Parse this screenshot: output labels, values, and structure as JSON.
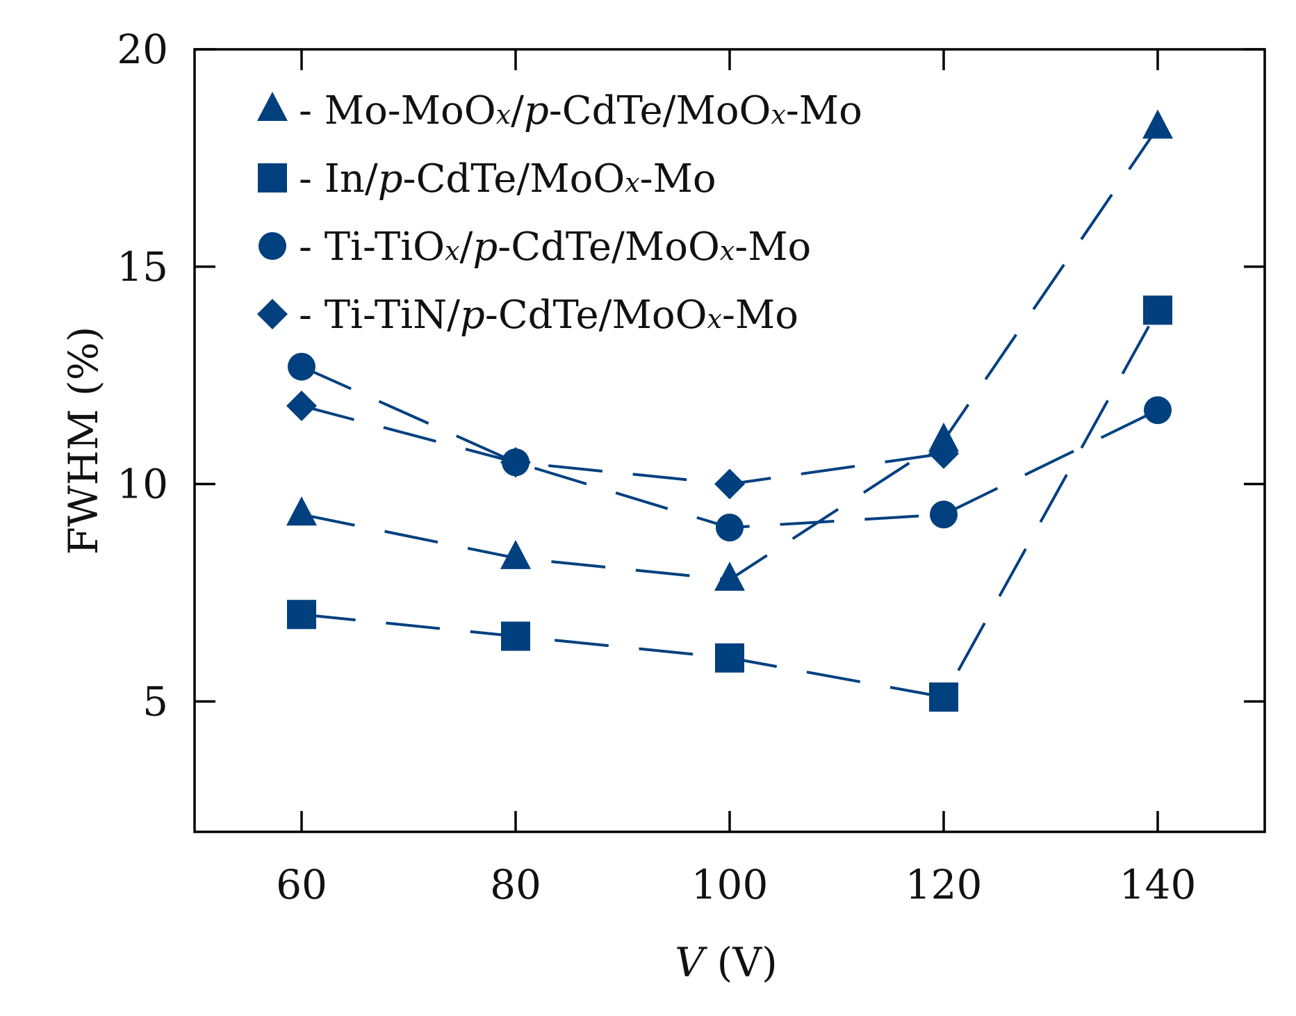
{
  "chart_data": {
    "type": "line",
    "title": "",
    "xlabel_var": "V",
    "xlabel_unit": " (V)",
    "ylabel": "FWHM (%)",
    "xlim": [
      50,
      150
    ],
    "ylim": [
      2,
      20
    ],
    "xticks": [
      60,
      80,
      100,
      120,
      140
    ],
    "yticks": [
      5,
      10,
      15,
      20
    ],
    "xtick_labels": [
      "60",
      "80",
      "100",
      "120",
      "140"
    ],
    "ytick_labels": [
      "5",
      "10",
      "15",
      "20"
    ],
    "grid": false,
    "legend_position": "top-left",
    "line_style": "dashed",
    "color": "#00407f",
    "series": [
      {
        "name": "Mo-MoOx/p-CdTe/MoOx-Mo",
        "legend_parts": [
          {
            "t": "- Mo-MoO",
            "s": "normal"
          },
          {
            "t": "x",
            "s": "sub"
          },
          {
            "t": "/",
            "s": "normal"
          },
          {
            "t": "p",
            "s": "italic"
          },
          {
            "t": "-CdTe/MoO",
            "s": "normal"
          },
          {
            "t": "x",
            "s": "sub"
          },
          {
            "t": "-Mo",
            "s": "normal"
          }
        ],
        "marker": "triangle",
        "x": [
          60,
          80,
          100,
          120,
          140
        ],
        "y": [
          9.3,
          8.3,
          7.8,
          11.0,
          18.2
        ]
      },
      {
        "name": "In/p-CdTe/MoOx-Mo",
        "legend_parts": [
          {
            "t": "- In/",
            "s": "normal"
          },
          {
            "t": "p",
            "s": "italic"
          },
          {
            "t": "-CdTe/MoO",
            "s": "normal"
          },
          {
            "t": "x",
            "s": "sub"
          },
          {
            "t": "-Mo",
            "s": "normal"
          }
        ],
        "marker": "square",
        "x": [
          60,
          80,
          100,
          120,
          140
        ],
        "y": [
          7.0,
          6.5,
          6.0,
          5.1,
          14.0
        ]
      },
      {
        "name": "Ti-TiOx/p-CdTe/MoOx-Mo",
        "legend_parts": [
          {
            "t": "- Ti-TiO",
            "s": "normal"
          },
          {
            "t": "x",
            "s": "sub"
          },
          {
            "t": "/",
            "s": "normal"
          },
          {
            "t": "p",
            "s": "italic"
          },
          {
            "t": "-CdTe/MoO",
            "s": "normal"
          },
          {
            "t": "x",
            "s": "sub"
          },
          {
            "t": "-Mo",
            "s": "normal"
          }
        ],
        "marker": "circle",
        "x": [
          60,
          80,
          100,
          120,
          140
        ],
        "y": [
          12.7,
          10.5,
          9.0,
          9.3,
          11.7
        ]
      },
      {
        "name": "Ti-TiN/p-CdTe/MoOx-Mo",
        "legend_parts": [
          {
            "t": "- Ti-TiN/",
            "s": "normal"
          },
          {
            "t": "p",
            "s": "italic"
          },
          {
            "t": "-CdTe/MoO",
            "s": "normal"
          },
          {
            "t": "x",
            "s": "sub"
          },
          {
            "t": "-Mo",
            "s": "normal"
          }
        ],
        "marker": "diamond",
        "x": [
          60,
          80,
          100,
          120
        ],
        "y": [
          11.8,
          10.5,
          10.0,
          10.7
        ]
      }
    ]
  }
}
